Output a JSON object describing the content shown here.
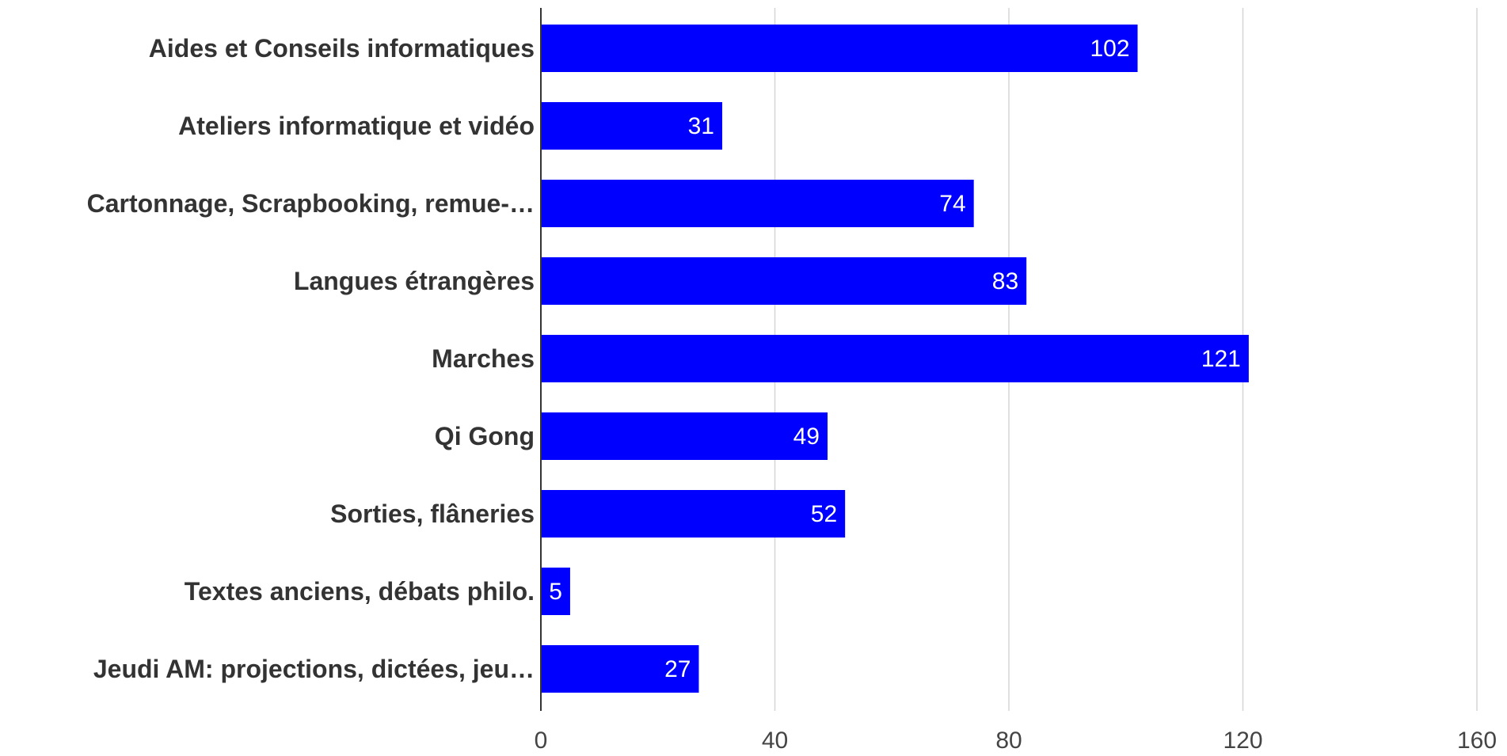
{
  "chart_data": {
    "type": "bar",
    "orientation": "horizontal",
    "categories": [
      "Aides et Conseils informatiques",
      "Ateliers informatique et vidéo",
      "Cartonnage, Scrapbooking, remue-…",
      "Langues étrangères",
      "Marches",
      "Qi Gong",
      "Sorties, flâneries",
      "Textes anciens, débats philo.",
      "Jeudi AM: projections, dictées, jeu…"
    ],
    "values": [
      102,
      31,
      74,
      83,
      121,
      49,
      52,
      5,
      27
    ],
    "title": "",
    "xlabel": "",
    "ylabel": "",
    "xlim": [
      0,
      160
    ],
    "x_ticks": [
      0,
      40,
      80,
      120,
      160
    ],
    "grid": true,
    "data_labels": true,
    "bar_color": "#0000ff",
    "value_label_color": "#ffffff"
  }
}
